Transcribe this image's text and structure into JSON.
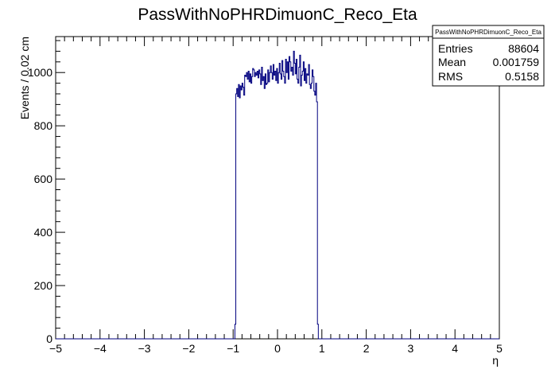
{
  "chart_data": {
    "type": "histogram",
    "title": "PassWithNoPHRDimuonC_Reco_Eta",
    "xlabel": "η",
    "ylabel": "Events / 0.02 cm",
    "xlim": [
      -5,
      5
    ],
    "ylim": [
      0,
      1135
    ],
    "bin_width": 0.02,
    "x_ticks": [
      -5,
      -4,
      -3,
      -2,
      -1,
      0,
      1,
      2,
      3,
      4,
      5
    ],
    "x_tick_labels": [
      "−5",
      "−4",
      "−3",
      "−2",
      "−1",
      "0",
      "1",
      "2",
      "3",
      "4",
      "5"
    ],
    "y_ticks": [
      0,
      200,
      400,
      600,
      800,
      1000
    ],
    "y_tick_labels": [
      "0",
      "200",
      "400",
      "600",
      "800",
      "1000"
    ],
    "line_color": "#00007f",
    "stats": {
      "title": "PassWithNoPHRDimuonC_Reco_Eta",
      "rows": [
        {
          "label": "Entries",
          "value": "88604"
        },
        {
          "label": "Mean",
          "value": "0.001759"
        },
        {
          "label": "RMS",
          "value": "0.5158"
        }
      ]
    },
    "bin_edges_start": -0.96,
    "bin_contents": [
      55,
      920,
      940,
      910,
      955,
      905,
      950,
      935,
      960,
      945,
      915,
      990,
      985,
      1000,
      975,
      1005,
      965,
      995,
      960,
      985,
      1015,
      1010,
      985,
      1000,
      990,
      1005,
      980,
      1010,
      995,
      955,
      1020,
      970,
      985,
      940,
      995,
      955,
      960,
      1010,
      965,
      1000,
      1025,
      1000,
      975,
      1030,
      990,
      1005,
      970,
      1015,
      960,
      1000,
      1035,
      995,
      975,
      1045,
      1005,
      985,
      960,
      1050,
      1000,
      1040,
      975,
      1060,
      1040,
      1005,
      1020,
      990,
      1080,
      1035,
      995,
      1050,
      975,
      960,
      1020,
      1065,
      950,
      990,
      1005,
      1040,
      970,
      1015,
      960,
      995,
      990,
      1030,
      955,
      940,
      960,
      1010,
      985,
      930,
      915,
      960,
      890,
      55
    ]
  }
}
